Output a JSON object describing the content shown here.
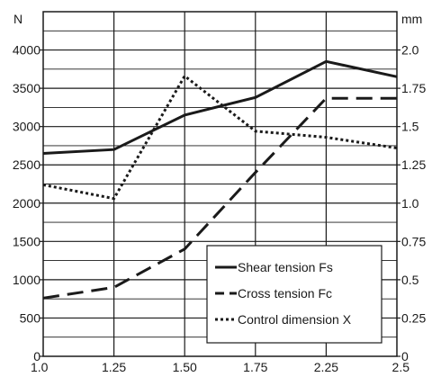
{
  "chart_data": {
    "type": "line",
    "title": "",
    "xlabel": "",
    "x": [
      1.0,
      1.25,
      1.5,
      1.75,
      2.25,
      2.5
    ],
    "x_tick_labels": [
      "1.0",
      "1.25",
      "1.50",
      "1.75",
      "2.25",
      "2.5"
    ],
    "left_axis": {
      "unit": "N",
      "range": [
        0,
        4500
      ],
      "tick_values": [
        0,
        500,
        1000,
        1500,
        2000,
        2500,
        3000,
        3500,
        4000
      ],
      "tick_labels": [
        "0",
        "500",
        "1000",
        "1500",
        "2000",
        "2500",
        "3000",
        "3500",
        "4000"
      ]
    },
    "right_axis": {
      "unit": "mm",
      "range": [
        0,
        2.25
      ],
      "tick_values": [
        0,
        0.25,
        0.5,
        0.75,
        1.0,
        1.25,
        1.5,
        1.75,
        2.0
      ],
      "tick_labels": [
        "0",
        "0.25",
        "0.5",
        "0.75",
        "1.0",
        "1.25",
        "1.5",
        "1.75",
        "2.0"
      ]
    },
    "grid": true,
    "legend_position": "bottom-right",
    "series": [
      {
        "name": "Shear tension Fs",
        "axis": "left",
        "style": "solid",
        "values": [
          2650,
          2700,
          3150,
          3380,
          3850,
          3650
        ]
      },
      {
        "name": "Cross tension Fc",
        "axis": "left",
        "style": "dashed",
        "values": [
          760,
          900,
          1400,
          2400,
          3370,
          3370
        ]
      },
      {
        "name": "Control dimension X",
        "axis": "right",
        "style": "dotted",
        "values": [
          1.12,
          1.03,
          1.83,
          1.47,
          1.43,
          1.36
        ]
      }
    ]
  }
}
